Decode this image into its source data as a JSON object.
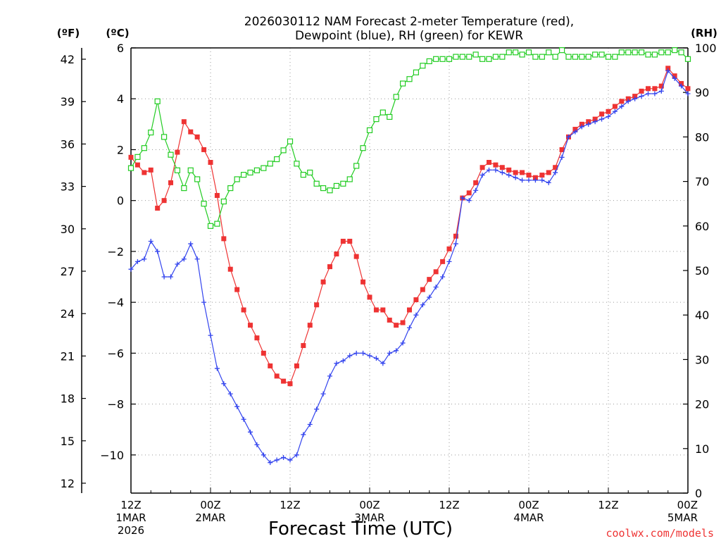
{
  "chart_data": {
    "type": "line",
    "title_line1": "2026030112 NAM Forecast 2-meter Temperature (red),",
    "title_line2": "Dewpoint (blue), RH (green) for KEWR",
    "xlabel": "Forecast Time (UTC)",
    "unit_left_f": "(ºF)",
    "unit_left_c": "(ºC)",
    "unit_right": "(RH)",
    "watermark": "coolwx.com/models",
    "x_range": [
      0,
      84
    ],
    "y_range_c": [
      -11.5,
      6
    ],
    "y_range_rh": [
      0,
      100
    ],
    "x_ticks": [
      {
        "x": 0,
        "lines": [
          "12Z",
          "1MAR",
          "2026"
        ]
      },
      {
        "x": 12,
        "lines": [
          "00Z",
          "2MAR"
        ]
      },
      {
        "x": 24,
        "lines": [
          "12Z"
        ]
      },
      {
        "x": 36,
        "lines": [
          "00Z",
          "3MAR"
        ]
      },
      {
        "x": 48,
        "lines": [
          "12Z"
        ]
      },
      {
        "x": 60,
        "lines": [
          "00Z",
          "4MAR"
        ]
      },
      {
        "x": 72,
        "lines": [
          "12Z"
        ]
      },
      {
        "x": 84,
        "lines": [
          "00Z",
          "5MAR"
        ]
      }
    ],
    "y_ticks_c": [
      6,
      4,
      2,
      0,
      -2,
      -4,
      -6,
      -8,
      -10
    ],
    "y_ticks_c_labels": [
      "6",
      "4",
      "2",
      "0",
      "−2",
      "−4",
      "−6",
      "−8",
      "−10"
    ],
    "y_ticks_f": [
      42,
      39,
      36,
      33,
      30,
      27,
      24,
      21,
      18,
      15,
      12
    ],
    "y_ticks_rh": [
      100,
      90,
      80,
      70,
      60,
      50,
      40,
      30,
      20,
      10,
      0
    ],
    "series": [
      {
        "name": "Temperature",
        "unit": "C",
        "color": "#ee3333",
        "marker": "square-filled",
        "x": [
          0,
          1,
          2,
          3,
          4,
          5,
          6,
          7,
          8,
          9,
          10,
          11,
          12,
          13,
          14,
          15,
          16,
          17,
          18,
          19,
          20,
          21,
          22,
          23,
          24,
          25,
          26,
          27,
          28,
          29,
          30,
          31,
          32,
          33,
          34,
          35,
          36,
          37,
          38,
          39,
          40,
          41,
          42,
          43,
          44,
          45,
          46,
          47,
          48,
          49,
          50,
          51,
          52,
          53,
          54,
          55,
          56,
          57,
          58,
          59,
          60,
          61,
          62,
          63,
          64,
          65,
          66,
          67,
          68,
          69,
          70,
          71,
          72,
          73,
          74,
          75,
          76,
          77,
          78,
          79,
          80,
          81,
          82,
          83,
          84
        ],
        "values": [
          1.7,
          1.4,
          1.1,
          1.2,
          -0.3,
          0.0,
          0.7,
          1.9,
          3.1,
          2.7,
          2.5,
          2.0,
          1.5,
          0.2,
          -1.5,
          -2.7,
          -3.5,
          -4.3,
          -4.9,
          -5.4,
          -6.0,
          -6.5,
          -6.9,
          -7.1,
          -7.2,
          -6.5,
          -5.7,
          -4.9,
          -4.1,
          -3.2,
          -2.6,
          -2.1,
          -1.6,
          -1.6,
          -2.2,
          -3.2,
          -3.8,
          -4.3,
          -4.3,
          -4.7,
          -4.9,
          -4.8,
          -4.3,
          -3.9,
          -3.5,
          -3.1,
          -2.8,
          -2.4,
          -1.9,
          -1.4,
          0.1,
          0.3,
          0.7,
          1.3,
          1.5,
          1.4,
          1.3,
          1.2,
          1.1,
          1.1,
          1.0,
          0.9,
          1.0,
          1.1,
          1.3,
          2.0,
          2.5,
          2.8,
          3.0,
          3.1,
          3.2,
          3.4,
          3.5,
          3.7,
          3.9,
          4.0,
          4.1,
          4.3,
          4.4,
          4.4,
          4.5,
          5.2,
          4.9,
          4.6,
          4.4
        ]
      },
      {
        "name": "Dewpoint",
        "unit": "C",
        "color": "#3344ee",
        "marker": "plus",
        "x": [
          0,
          1,
          2,
          3,
          4,
          5,
          6,
          7,
          8,
          9,
          10,
          11,
          12,
          13,
          14,
          15,
          16,
          17,
          18,
          19,
          20,
          21,
          22,
          23,
          24,
          25,
          26,
          27,
          28,
          29,
          30,
          31,
          32,
          33,
          34,
          35,
          36,
          37,
          38,
          39,
          40,
          41,
          42,
          43,
          44,
          45,
          46,
          47,
          48,
          49,
          50,
          51,
          52,
          53,
          54,
          55,
          56,
          57,
          58,
          59,
          60,
          61,
          62,
          63,
          64,
          65,
          66,
          67,
          68,
          69,
          70,
          71,
          72,
          73,
          74,
          75,
          76,
          77,
          78,
          79,
          80,
          81,
          82,
          83,
          84
        ],
        "values": [
          -2.7,
          -2.4,
          -2.3,
          -1.6,
          -2.0,
          -3.0,
          -3.0,
          -2.5,
          -2.3,
          -1.7,
          -2.3,
          -4.0,
          -5.3,
          -6.6,
          -7.2,
          -7.6,
          -8.1,
          -8.6,
          -9.1,
          -9.6,
          -10.0,
          -10.3,
          -10.2,
          -10.1,
          -10.2,
          -10.0,
          -9.2,
          -8.8,
          -8.2,
          -7.6,
          -6.9,
          -6.4,
          -6.3,
          -6.1,
          -6.0,
          -6.0,
          -6.1,
          -6.2,
          -6.4,
          -6.0,
          -5.9,
          -5.6,
          -5.0,
          -4.5,
          -4.1,
          -3.8,
          -3.4,
          -3.0,
          -2.4,
          -1.7,
          0.1,
          0.0,
          0.4,
          1.0,
          1.2,
          1.2,
          1.1,
          1.0,
          0.9,
          0.8,
          0.8,
          0.8,
          0.8,
          0.7,
          1.1,
          1.7,
          2.5,
          2.7,
          2.9,
          3.0,
          3.1,
          3.2,
          3.3,
          3.5,
          3.7,
          3.9,
          4.0,
          4.1,
          4.2,
          4.2,
          4.3,
          5.1,
          4.8,
          4.5,
          4.2
        ]
      },
      {
        "name": "RH",
        "unit": "%",
        "color": "#22cc22",
        "marker": "square-open",
        "x": [
          0,
          1,
          2,
          3,
          4,
          5,
          6,
          7,
          8,
          9,
          10,
          11,
          12,
          13,
          14,
          15,
          16,
          17,
          18,
          19,
          20,
          21,
          22,
          23,
          24,
          25,
          26,
          27,
          28,
          29,
          30,
          31,
          32,
          33,
          34,
          35,
          36,
          37,
          38,
          39,
          40,
          41,
          42,
          43,
          44,
          45,
          46,
          47,
          48,
          49,
          50,
          51,
          52,
          53,
          54,
          55,
          56,
          57,
          58,
          59,
          60,
          61,
          62,
          63,
          64,
          65,
          66,
          67,
          68,
          69,
          70,
          71,
          72,
          73,
          74,
          75,
          76,
          77,
          78,
          79,
          80,
          81,
          82,
          83,
          84
        ],
        "values": [
          73,
          75.5,
          77.5,
          81,
          88,
          80,
          76,
          72.5,
          68.5,
          72.5,
          70.5,
          65,
          60,
          60.5,
          65.5,
          68.5,
          70.5,
          71.5,
          72,
          72.5,
          73,
          74,
          75,
          77,
          79,
          74,
          71.5,
          72,
          69.5,
          68.5,
          68,
          69,
          69.5,
          70.5,
          73.5,
          77.5,
          81.5,
          84,
          85.5,
          84.5,
          89,
          92,
          93,
          94.5,
          96,
          97,
          97.5,
          97.5,
          97.5,
          98,
          98,
          98,
          98.5,
          97.5,
          97.5,
          98,
          98,
          99,
          99,
          98.5,
          99,
          98,
          98,
          99,
          98,
          99.5,
          98,
          98,
          98,
          98,
          98.5,
          98.5,
          98,
          98,
          99,
          99,
          99,
          99,
          98.5,
          98.5,
          99,
          99,
          99.5,
          99,
          97.5
        ]
      }
    ]
  }
}
